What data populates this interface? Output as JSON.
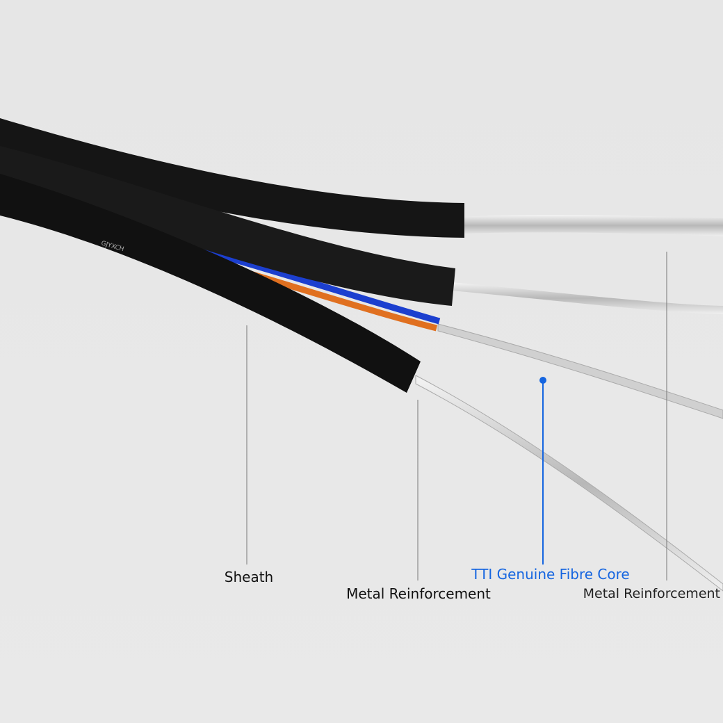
{
  "cable_text": "GJYXCH",
  "labels": [
    {
      "text": "Sheath"
    },
    {
      "text": "Metal Reinforcement"
    },
    {
      "text": "TTI Genuine Fibre Core"
    },
    {
      "text": "Metal Reinforcement"
    }
  ]
}
